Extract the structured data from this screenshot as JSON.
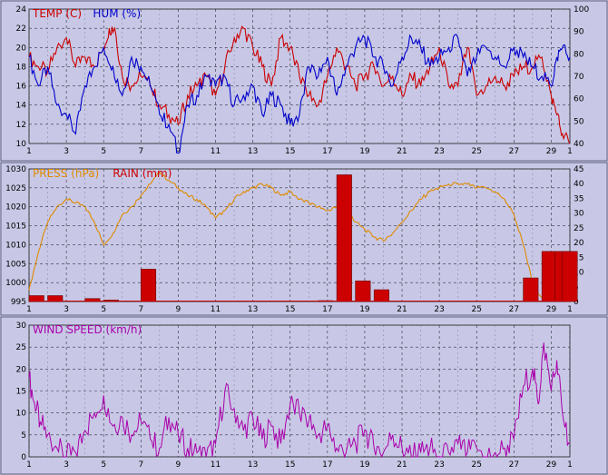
{
  "chart_data": [
    {
      "type": "line",
      "legend": [
        {
          "name": "TEMP (C)",
          "color": "#cc0000"
        },
        {
          "name": "HUM (%)",
          "color": "#0000cc"
        }
      ],
      "x_ticks": [
        "1",
        "3",
        "5",
        "7",
        "9",
        "11",
        "13",
        "15",
        "17",
        "19",
        "21",
        "23",
        "25",
        "27",
        "29",
        "1"
      ],
      "xlim": [
        1,
        30
      ],
      "y_left": {
        "ticks": [
          "10",
          "12",
          "14",
          "16",
          "18",
          "20",
          "22",
          "24"
        ],
        "lim": [
          10,
          24
        ]
      },
      "y_right": {
        "ticks": [
          "40",
          "50",
          "60",
          "70",
          "80",
          "90",
          "100"
        ],
        "lim": [
          40,
          100
        ]
      },
      "grid": true,
      "series": [
        {
          "name": "TEMP (C)",
          "axis": "left",
          "color": "#cc0000",
          "x": [
            1,
            1.5,
            2,
            2.5,
            3,
            3.5,
            4,
            4.5,
            5,
            5.3,
            5.6,
            6,
            6.5,
            7,
            7.5,
            8,
            8.5,
            9,
            9.5,
            10,
            10.5,
            11,
            11.5,
            12,
            12.5,
            13,
            13.5,
            14,
            14.5,
            15,
            15.5,
            16,
            16.5,
            17,
            17.5,
            18,
            18.5,
            19,
            19.5,
            20,
            20.5,
            21,
            21.5,
            22,
            22.5,
            23,
            23.5,
            24,
            24.5,
            25,
            25.5,
            26,
            26.5,
            27,
            27.5,
            28,
            28.5,
            29,
            29.3,
            29.6,
            30
          ],
          "y": [
            19,
            18,
            17.5,
            20,
            21,
            18,
            19,
            18,
            20,
            22,
            22,
            17,
            16,
            17,
            16,
            14,
            13,
            12,
            15,
            16,
            17,
            15,
            18,
            21,
            22,
            20,
            18,
            16,
            21,
            20,
            17,
            15,
            14,
            17,
            20,
            18,
            16,
            17,
            18,
            16,
            17,
            15,
            17,
            16,
            18,
            20,
            16,
            16,
            20,
            15,
            16,
            17,
            16,
            17,
            18,
            18,
            19,
            15,
            13,
            11,
            10
          ]
        },
        {
          "name": "HUM (%)",
          "axis": "left",
          "color": "#0000cc",
          "x": [
            1,
            1.5,
            2,
            2.5,
            3,
            3.5,
            4,
            4.5,
            5,
            5.5,
            6,
            6.5,
            7,
            7.5,
            8,
            8.5,
            9,
            9.5,
            10,
            10.5,
            11,
            11.5,
            12,
            12.5,
            13,
            13.5,
            14,
            14.5,
            15,
            15.5,
            16,
            16.5,
            17,
            17.5,
            18,
            18.5,
            19,
            19.5,
            20,
            20.5,
            21,
            21.5,
            22,
            22.5,
            23,
            23.5,
            24,
            24.5,
            25,
            25.5,
            26,
            26.5,
            27,
            27.5,
            28,
            28.5,
            29,
            29.3,
            29.6,
            30
          ],
          "y": [
            19,
            16,
            18,
            14,
            13,
            11,
            16,
            18,
            20,
            18,
            15,
            19,
            18,
            16,
            13,
            12,
            9,
            14,
            15,
            17,
            16,
            17,
            14,
            15,
            16,
            13,
            15,
            14,
            12,
            13,
            18,
            17,
            19,
            15,
            18,
            20,
            21,
            19,
            18,
            16,
            19,
            21,
            20,
            18,
            19,
            20,
            21,
            17,
            19,
            20,
            19,
            18,
            20,
            19,
            18,
            17,
            16,
            19,
            20,
            19
          ]
        }
      ]
    },
    {
      "type": "bar",
      "legend": [
        {
          "name": "PRESS (hPa)",
          "color": "#e08a00"
        },
        {
          "name": "RAIN (mm)",
          "color": "#cc0000"
        }
      ],
      "x_ticks": [
        "1",
        "3",
        "5",
        "7",
        "9",
        "11",
        "13",
        "15",
        "17",
        "19",
        "21",
        "23",
        "25",
        "27",
        "29",
        "1"
      ],
      "xlim": [
        1,
        30
      ],
      "y_left": {
        "ticks": [
          "995",
          "1000",
          "1005",
          "1010",
          "1015",
          "1020",
          "1025",
          "1030"
        ],
        "lim": [
          995,
          1030
        ]
      },
      "y_right": {
        "ticks": [
          "0",
          "5",
          "10",
          "15",
          "20",
          "25",
          "30",
          "35",
          "40",
          "45"
        ],
        "lim": [
          0,
          45
        ]
      },
      "grid": true,
      "series": [
        {
          "name": "PRESS (hPa)",
          "axis": "left",
          "type": "line",
          "color": "#e08a00",
          "x": [
            1,
            1.5,
            2,
            2.5,
            3,
            3.5,
            4,
            4.5,
            5,
            5.5,
            6,
            6.5,
            7,
            7.5,
            8,
            8.5,
            9,
            9.5,
            10,
            10.5,
            11,
            11.5,
            12,
            12.5,
            13,
            13.5,
            14,
            14.5,
            15,
            15.5,
            16,
            16.5,
            17,
            17.5,
            18,
            18.5,
            19,
            19.5,
            20,
            20.5,
            21,
            21.5,
            22,
            22.5,
            23,
            23.5,
            24,
            24.5,
            25,
            25.5,
            26,
            26.5,
            27,
            27.5,
            28,
            28.5,
            29,
            29.3,
            29.6,
            30
          ],
          "y": [
            998,
            1008,
            1016,
            1020,
            1022,
            1021,
            1020,
            1016,
            1010,
            1013,
            1018,
            1020,
            1023,
            1026,
            1029,
            1027,
            1025,
            1023,
            1022,
            1020,
            1017,
            1019,
            1022,
            1024,
            1025,
            1026,
            1025,
            1023,
            1024,
            1022,
            1021,
            1020,
            1019,
            1020,
            1020,
            1016,
            1014,
            1012,
            1011,
            1013,
            1016,
            1019,
            1022,
            1024,
            1025,
            1026,
            1026,
            1026,
            1025,
            1025,
            1024,
            1022,
            1018,
            1010,
            1000,
            996,
            998,
            1003,
            1005,
            1007
          ]
        },
        {
          "name": "RAIN (mm)",
          "axis": "right",
          "type": "bar",
          "color": "#cc0000",
          "x": [
            1.4,
            2.4,
            4.4,
            5.4,
            7.4,
            8.4,
            16.9,
            17.9,
            18.9,
            19.9,
            27.9,
            28.9,
            29.6,
            30
          ],
          "values": [
            2,
            2,
            1,
            0.5,
            11,
            0,
            0.3,
            43,
            7,
            4,
            8,
            17,
            17,
            17
          ]
        }
      ]
    },
    {
      "type": "line",
      "legend": [
        {
          "name": "WIND SPEED (km/h)",
          "color": "#aa00aa"
        }
      ],
      "x_ticks": [
        "1",
        "3",
        "5",
        "7",
        "9",
        "11",
        "13",
        "15",
        "17",
        "19",
        "21",
        "23",
        "25",
        "27",
        "29",
        "1"
      ],
      "xlim": [
        1,
        30
      ],
      "y_left": {
        "ticks": [
          "0",
          "5",
          "10",
          "15",
          "20",
          "25",
          "30"
        ],
        "lim": [
          0,
          30
        ]
      },
      "grid": true,
      "series": [
        {
          "name": "WIND SPEED (km/h)",
          "axis": "left",
          "color": "#aa00aa",
          "x": [
            1,
            1.3,
            1.6,
            2,
            2.5,
            3,
            3.5,
            4,
            4.5,
            5,
            5.5,
            6,
            6.5,
            7,
            7.5,
            8,
            8.5,
            9,
            9.5,
            10,
            10.5,
            11,
            11.5,
            12,
            12.5,
            13,
            13.5,
            14,
            14.5,
            15,
            15.5,
            16,
            16.5,
            17,
            17.5,
            18,
            18.5,
            19,
            19.5,
            20,
            20.5,
            21,
            21.5,
            22,
            22.5,
            23,
            23.5,
            24,
            24.5,
            25,
            25.5,
            26,
            26.5,
            27,
            27.5,
            28,
            28.3,
            28.6,
            29,
            29.3,
            29.6,
            30
          ],
          "y": [
            18,
            12,
            8,
            5,
            2,
            0,
            1,
            6,
            10,
            14,
            7,
            9,
            5,
            8,
            4,
            2,
            9,
            5,
            2,
            1,
            0,
            3,
            15,
            11,
            6,
            9,
            4,
            7,
            3,
            12,
            10,
            8,
            5,
            7,
            2,
            1,
            3,
            6,
            2,
            1,
            5,
            2,
            0,
            1,
            2,
            0,
            1,
            3,
            1,
            2,
            0,
            1,
            2,
            4,
            16,
            20,
            12,
            26,
            15,
            22,
            10,
            3
          ]
        }
      ]
    }
  ]
}
